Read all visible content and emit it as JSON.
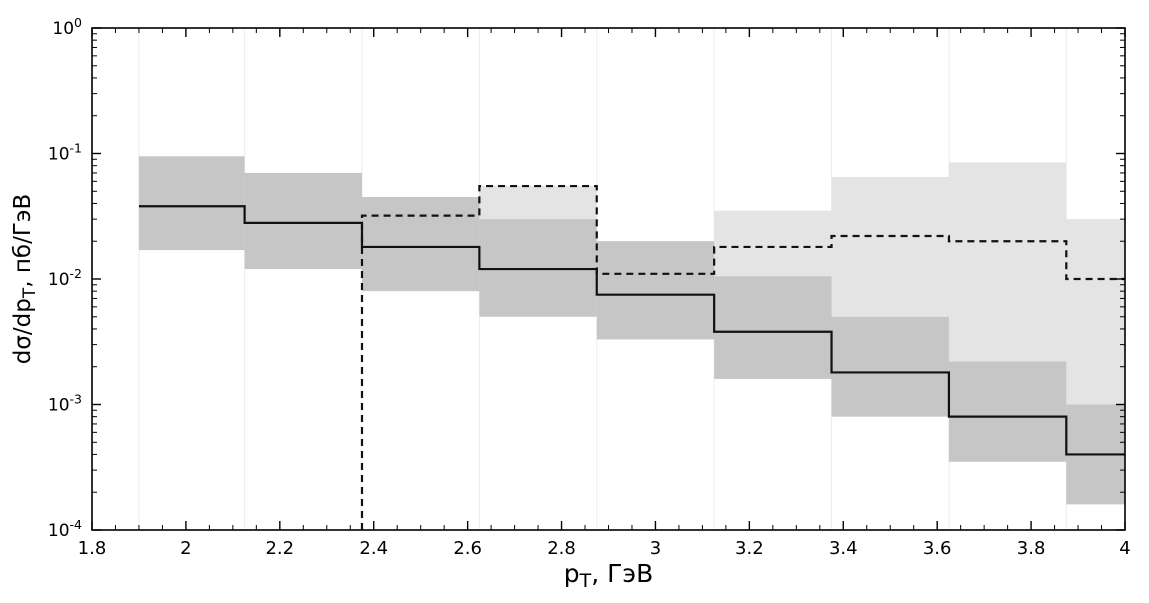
{
  "chart_data": {
    "type": "step-histogram",
    "title": "",
    "xlabel": {
      "main": "p",
      "sub": "T",
      "rest": ", ГэВ"
    },
    "ylabel": {
      "main": "dσ/dp",
      "sub": "T",
      "rest": ", пб/ГэВ"
    },
    "xlim": [
      1.8,
      4.0
    ],
    "ylog_exp_range": [
      -4,
      0
    ],
    "x_major_tick_step": 0.2,
    "x_minor_tick_step": 0.05,
    "x_major_ticks": [
      1.8,
      2.0,
      2.2,
      2.4,
      2.6,
      2.8,
      3.0,
      3.2,
      3.4,
      3.6,
      3.8,
      4.0
    ],
    "x_tick_labels": [
      "1.8",
      "2",
      "2.2",
      "2.4",
      "2.6",
      "2.8",
      "3",
      "3.2",
      "3.4",
      "3.6",
      "3.8",
      "4"
    ],
    "y_tick_labels": [
      {
        "base": "10",
        "exp": "0",
        "value": 1
      },
      {
        "base": "10",
        "exp": "-1",
        "value": 0.1
      },
      {
        "base": "10",
        "exp": "-2",
        "value": 0.01
      },
      {
        "base": "10",
        "exp": "-3",
        "value": 0.001
      },
      {
        "base": "10",
        "exp": "-4",
        "value": 0.0001
      }
    ],
    "grid": "faint-vertical-at-bin-edges",
    "legend": "none",
    "colors": {
      "solid_line": "#111111",
      "dashed_line": "#111111",
      "solid_band": "#c6c6c6",
      "dashed_band": "#e4e4e4",
      "axis": "#000000",
      "grid_line": "#ededed",
      "background": "#ffffff"
    },
    "series": [
      {
        "name": "dashed-prediction",
        "line_style": "dashed",
        "drop_to_axis_at_start": true,
        "edges": [
          2.375,
          2.625,
          2.875,
          3.125,
          3.375,
          3.625,
          3.875,
          4.0
        ],
        "values": [
          0.032,
          0.055,
          0.011,
          0.018,
          0.022,
          0.02,
          0.01
        ],
        "band_upper": [
          0.045,
          0.055,
          0.02,
          0.035,
          0.065,
          0.085,
          0.03
        ],
        "band_lower": [
          0.03,
          0.028,
          0.011,
          0.01,
          0.005,
          0.002,
          0.001
        ]
      },
      {
        "name": "solid-measurement",
        "line_style": "solid",
        "drop_to_axis_at_start": false,
        "edges": [
          1.9,
          2.125,
          2.375,
          2.625,
          2.875,
          3.125,
          3.375,
          3.625,
          3.875,
          4.0
        ],
        "values": [
          0.038,
          0.028,
          0.018,
          0.012,
          0.0075,
          0.0038,
          0.0018,
          0.0008,
          0.0004
        ],
        "band_upper": [
          0.095,
          0.07,
          0.045,
          0.03,
          0.02,
          0.0105,
          0.005,
          0.0022,
          0.001
        ],
        "band_lower": [
          0.017,
          0.012,
          0.008,
          0.005,
          0.0033,
          0.0016,
          0.0008,
          0.00035,
          0.00016
        ]
      }
    ]
  }
}
